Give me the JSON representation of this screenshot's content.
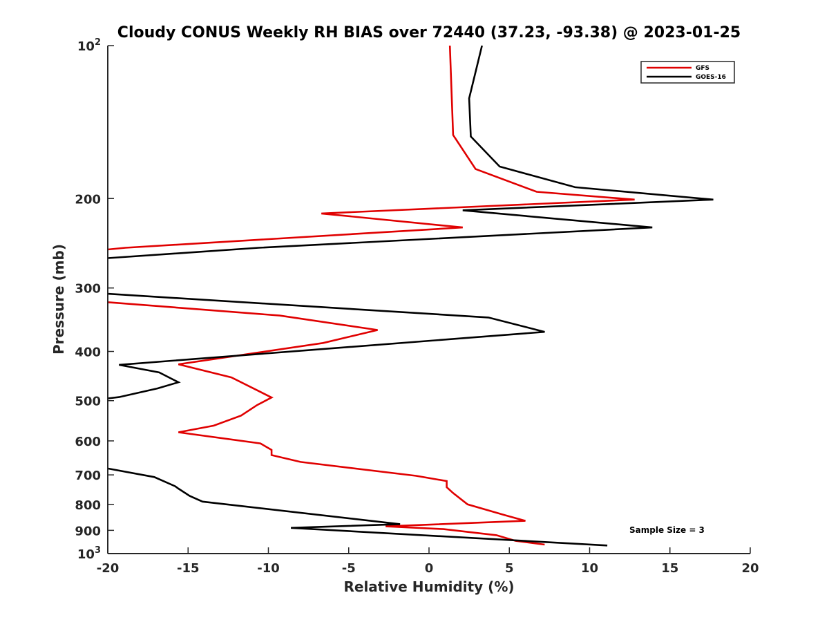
{
  "chart_data": {
    "type": "line",
    "title": "Cloudy CONUS Weekly RH BIAS over 72440 (37.23, -93.38) @ 2023-01-25",
    "xlabel": "Relative Humidity (%)",
    "ylabel": "Pressure (mb)",
    "xlim": [
      -20,
      20
    ],
    "ylim": [
      100,
      1000
    ],
    "y_scale": "log",
    "y_reversed": true,
    "grid": false,
    "legend_position": "top-right",
    "x_ticks": [
      "-20",
      "-15",
      "-10",
      "-5",
      "0",
      "5",
      "10",
      "15",
      "20"
    ],
    "y_ticks": [
      {
        "value": 100,
        "base": "10",
        "exp": "2"
      },
      {
        "value": 200,
        "label": "200"
      },
      {
        "value": 300,
        "label": "300"
      },
      {
        "value": 400,
        "label": "400"
      },
      {
        "value": 500,
        "label": "500"
      },
      {
        "value": 600,
        "label": "600"
      },
      {
        "value": 700,
        "label": "700"
      },
      {
        "value": 800,
        "label": "800"
      },
      {
        "value": 900,
        "label": "900"
      },
      {
        "value": 1000,
        "base": "10",
        "exp": "3"
      }
    ],
    "annotation": "Sample Size = 3",
    "series": [
      {
        "name": "GFS",
        "color": "#e00000",
        "segments": [
          [
            [
              1.3,
              100
            ],
            [
              1.5,
              150
            ],
            [
              2.9,
              175
            ],
            [
              6.7,
              194
            ],
            [
              12.8,
              201
            ],
            [
              -6.7,
              214
            ],
            [
              2.1,
              228
            ],
            [
              -18.9,
              250
            ],
            [
              -20,
              252
            ]
          ],
          [
            [
              -20,
              320
            ],
            [
              -9.3,
              340
            ],
            [
              -3.2,
              363
            ],
            [
              -6.6,
              385
            ],
            [
              -15.6,
              424
            ],
            [
              -12.3,
              450
            ],
            [
              -10.7,
              477
            ],
            [
              -9.8,
              493
            ],
            [
              -10.7,
              510
            ],
            [
              -11.7,
              535
            ],
            [
              -13.4,
              560
            ],
            [
              -15.6,
              577
            ],
            [
              -10.5,
              607
            ],
            [
              -9.8,
              625
            ],
            [
              -9.8,
              640
            ],
            [
              -8,
              660
            ],
            [
              -0.8,
              703
            ],
            [
              1.1,
              720
            ],
            [
              1.1,
              740
            ],
            [
              1.5,
              760
            ],
            [
              2.4,
              800
            ],
            [
              4.7,
              840
            ],
            [
              6,
              862
            ],
            [
              -2.7,
              884
            ],
            [
              0.9,
              895
            ],
            [
              4.2,
              920
            ],
            [
              5.4,
              944
            ],
            [
              7.2,
              960
            ]
          ]
        ]
      },
      {
        "name": "GOES-16",
        "color": "#000000",
        "segments": [
          [
            [
              3.3,
              100
            ],
            [
              2.5,
              127
            ],
            [
              2.6,
              151
            ],
            [
              4.4,
              173
            ],
            [
              9.1,
              190
            ],
            [
              17.7,
              201
            ],
            [
              2.1,
              211
            ],
            [
              13.9,
              228
            ],
            [
              -10.6,
              250
            ],
            [
              -20,
              262
            ]
          ],
          [
            [
              -20,
              308
            ],
            [
              3.7,
              343
            ],
            [
              7.2,
              366
            ],
            [
              -19.3,
              425
            ],
            [
              -16.8,
              440
            ],
            [
              -15.6,
              460
            ],
            [
              -16.9,
              473
            ],
            [
              -19.3,
              492
            ],
            [
              -20,
              495
            ]
          ],
          [
            [
              -20,
              680
            ],
            [
              -17.1,
              707
            ],
            [
              -15.8,
              737
            ],
            [
              -15.6,
              745
            ],
            [
              -14.9,
              770
            ],
            [
              -14.1,
              790
            ],
            [
              -1.8,
              875
            ],
            [
              -8.6,
              890
            ],
            [
              11.1,
              964
            ]
          ]
        ]
      }
    ]
  }
}
